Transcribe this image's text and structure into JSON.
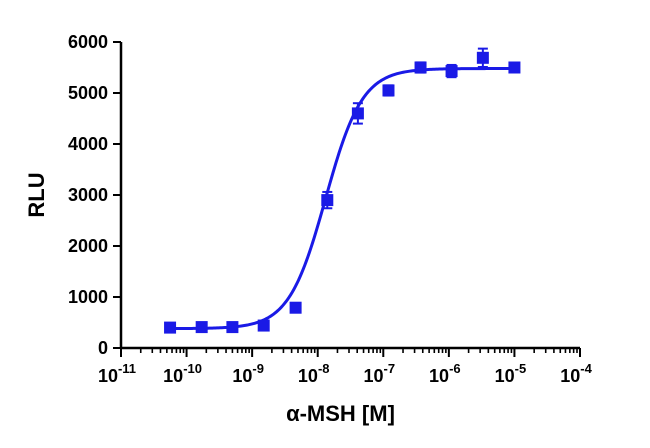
{
  "chart_data": {
    "type": "scatter",
    "title": "",
    "xlabel": "α-MSH [M]",
    "ylabel": "RLU",
    "x_scale": "log",
    "xlim": [
      1e-11,
      0.0001
    ],
    "ylim": [
      0,
      6000
    ],
    "x_ticks": [
      {
        "base": "10",
        "exp": "-11"
      },
      {
        "base": "10",
        "exp": "-10"
      },
      {
        "base": "10",
        "exp": "-9"
      },
      {
        "base": "10",
        "exp": "-8"
      },
      {
        "base": "10",
        "exp": "-7"
      },
      {
        "base": "10",
        "exp": "-6"
      },
      {
        "base": "10",
        "exp": "-5"
      },
      {
        "base": "10",
        "exp": "-4"
      }
    ],
    "y_ticks": [
      "0",
      "1000",
      "2000",
      "3000",
      "4000",
      "5000",
      "6000"
    ],
    "grid": false,
    "color": "#1a1ae6",
    "series": [
      {
        "marker": "square",
        "points": [
          {
            "x": 5.6e-11,
            "y": 400,
            "err": 30
          },
          {
            "x": 1.7e-10,
            "y": 410,
            "err": 30
          },
          {
            "x": 5e-10,
            "y": 410,
            "err": 30
          },
          {
            "x": 1.5e-09,
            "y": 440,
            "err": 30
          },
          {
            "x": 4.6e-09,
            "y": 790,
            "err": 50
          },
          {
            "x": 1.4e-08,
            "y": 2900,
            "err": 160
          },
          {
            "x": 4.1e-08,
            "y": 4600,
            "err": 200
          },
          {
            "x": 1.2e-07,
            "y": 5050,
            "err": 100
          },
          {
            "x": 3.7e-07,
            "y": 5500,
            "err": 100
          },
          {
            "x": 1.1e-06,
            "y": 5430,
            "err": 120
          },
          {
            "x": 3.3e-06,
            "y": 5690,
            "err": 180
          },
          {
            "x": 1e-05,
            "y": 5500,
            "err": 80
          }
        ]
      }
    ],
    "fit": {
      "model": "sigmoidal dose-response",
      "bottom": 380,
      "top": 5480,
      "log_ec50": -7.88,
      "hill": 1.55,
      "x_range": [
        5.6e-11,
        1e-05
      ]
    }
  }
}
